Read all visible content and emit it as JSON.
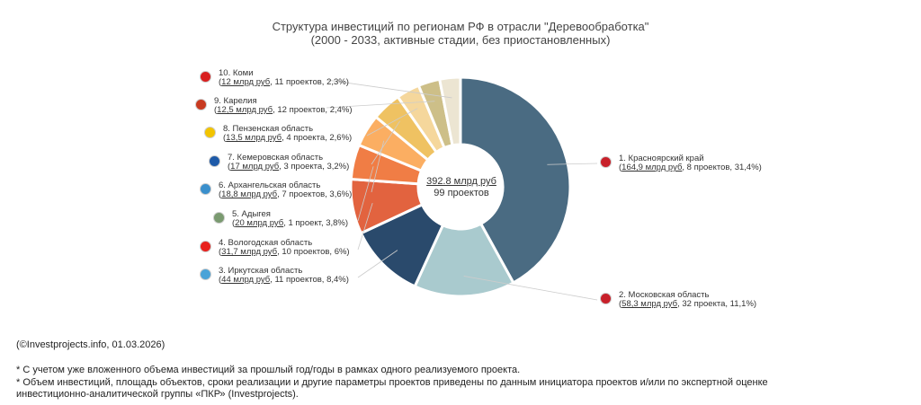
{
  "chart_data": {
    "type": "pie",
    "title": "Структура инвестиций по регионам РФ в отрасли \"Деревообработка\"",
    "subtitle": "(2000 - 2033, активные стадии, без приостановленных)",
    "center": {
      "total": "392.8 млрд руб",
      "projects": "99 проектов"
    },
    "slices": [
      {
        "name": "1. Красноярский край",
        "sum": "164,9 млрд руб",
        "rest": ", 8 проектов, 31,4%)",
        "value": 164.9,
        "color": "#4a6b82"
      },
      {
        "name": "2. Московская область",
        "sum": "58,3 млрд руб",
        "rest": ", 32 проекта, 11,1%)",
        "value": 58.3,
        "color": "#a9cace"
      },
      {
        "name": "3. Иркутская область",
        "sum": "44 млрд руб",
        "rest": ", 11 проектов, 8,4%)",
        "value": 44,
        "color": "#2a4a6c"
      },
      {
        "name": "4. Вологодская область",
        "sum": "31,7 млрд руб",
        "rest": ", 10 проектов, 6%)",
        "value": 31.7,
        "color": "#e2633f"
      },
      {
        "name": "5. Адыгея",
        "sum": "20 млрд руб",
        "rest": ", 1 проект, 3,8%)",
        "value": 20,
        "color": "#f07d45"
      },
      {
        "name": "6. Архангельская область",
        "sum": "18,8 млрд руб",
        "rest": ", 7 проектов, 3,6%)",
        "value": 18.8,
        "color": "#fbae62"
      },
      {
        "name": "7. Кемеровская область",
        "sum": "17 млрд руб",
        "rest": ", 3 проекта, 3,2%)",
        "value": 17,
        "color": "#efc262"
      },
      {
        "name": "8. Пензенская область",
        "sum": "13,5 млрд руб",
        "rest": ", 4 проекта, 2,6%)",
        "value": 13.5,
        "color": "#f5d79c"
      },
      {
        "name": "9. Карелия",
        "sum": "12,5 млрд руб",
        "rest": ", 12 проектов, 2,4%)",
        "value": 12.5,
        "color": "#cdbf88"
      },
      {
        "name": "10. Коми",
        "sum": "12 млрд руб",
        "rest": ", 11 проектов, 2,3%)",
        "value": 12,
        "color": "#ece5d2"
      }
    ]
  },
  "footer": {
    "source": "(©Investprojects.info, 01.03.2026)",
    "note1": "* С учетом уже вложенного объема инвестиций за прошлый год/годы в рамках одного реализуемого проекта.",
    "note2": "* Объем инвестиций, площадь объектов, сроки реализации и другие параметры проектов приведены по данным инициатора проектов и/или по экспертной оценке",
    "note3": "инвестиционно-аналитической группы «ПКР» (Investprojects)."
  }
}
